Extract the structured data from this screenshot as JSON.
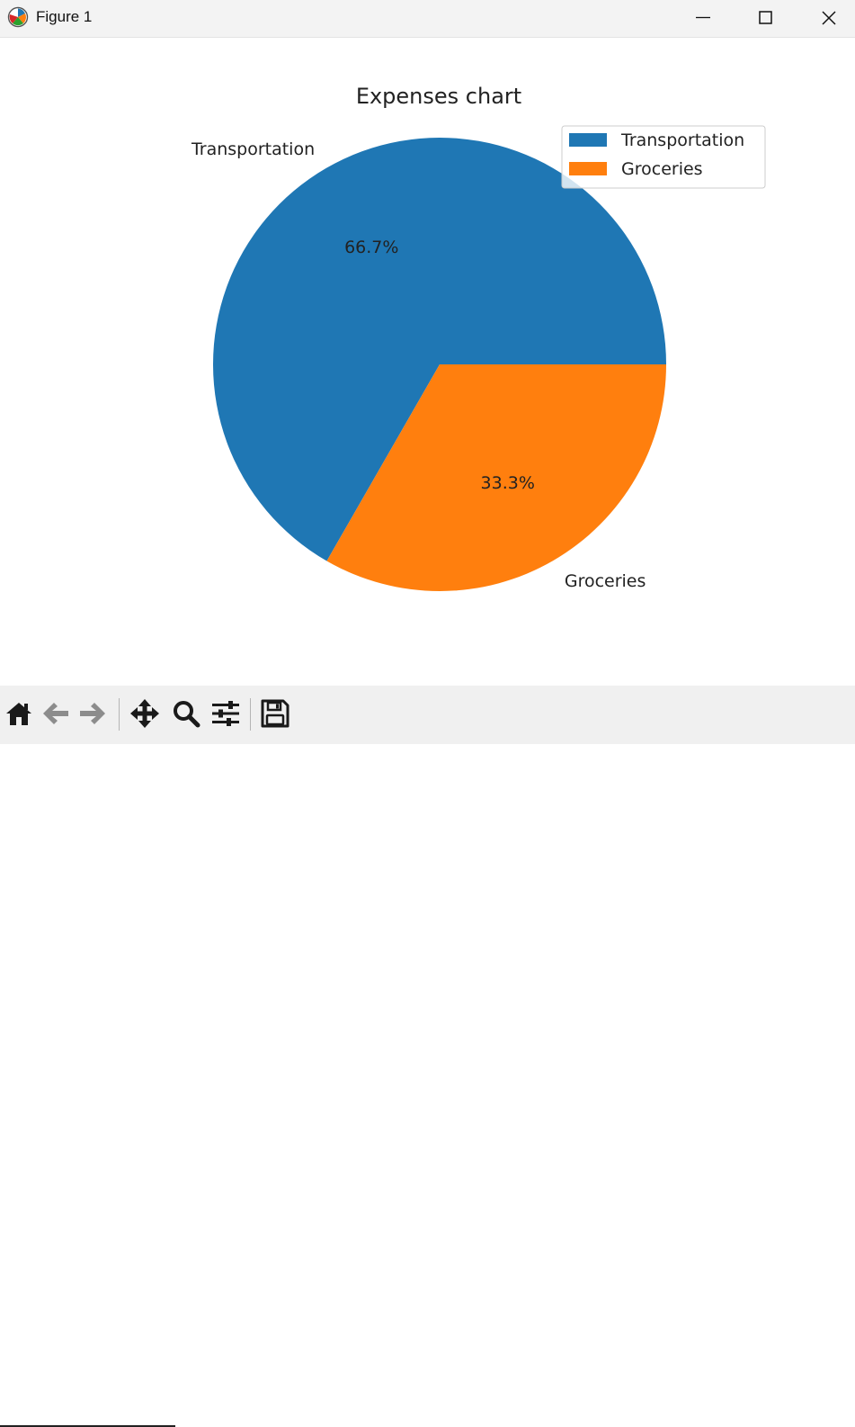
{
  "window": {
    "title": "Figure 1",
    "icons": [
      "app-icon",
      "minimize-icon",
      "maximize-icon",
      "close-icon"
    ]
  },
  "toolbar": {
    "buttons": [
      "home-icon",
      "back-icon",
      "forward-icon",
      "pan-icon",
      "zoom-icon",
      "configure-subplots-icon",
      "save-icon"
    ]
  },
  "colors": {
    "transportation": "#1f77b4",
    "groceries": "#ff7f0e"
  },
  "chart_data": {
    "type": "pie",
    "title": "Expenses chart",
    "labels": [
      "Transportation",
      "Groceries"
    ],
    "values": [
      66.7,
      33.3
    ],
    "autopct": [
      "66.7%",
      "33.3%"
    ],
    "colors": [
      "#1f77b4",
      "#ff7f0e"
    ],
    "start_angle": 0,
    "legend": {
      "placement": "top-right",
      "entries": [
        "Transportation",
        "Groceries"
      ]
    }
  }
}
